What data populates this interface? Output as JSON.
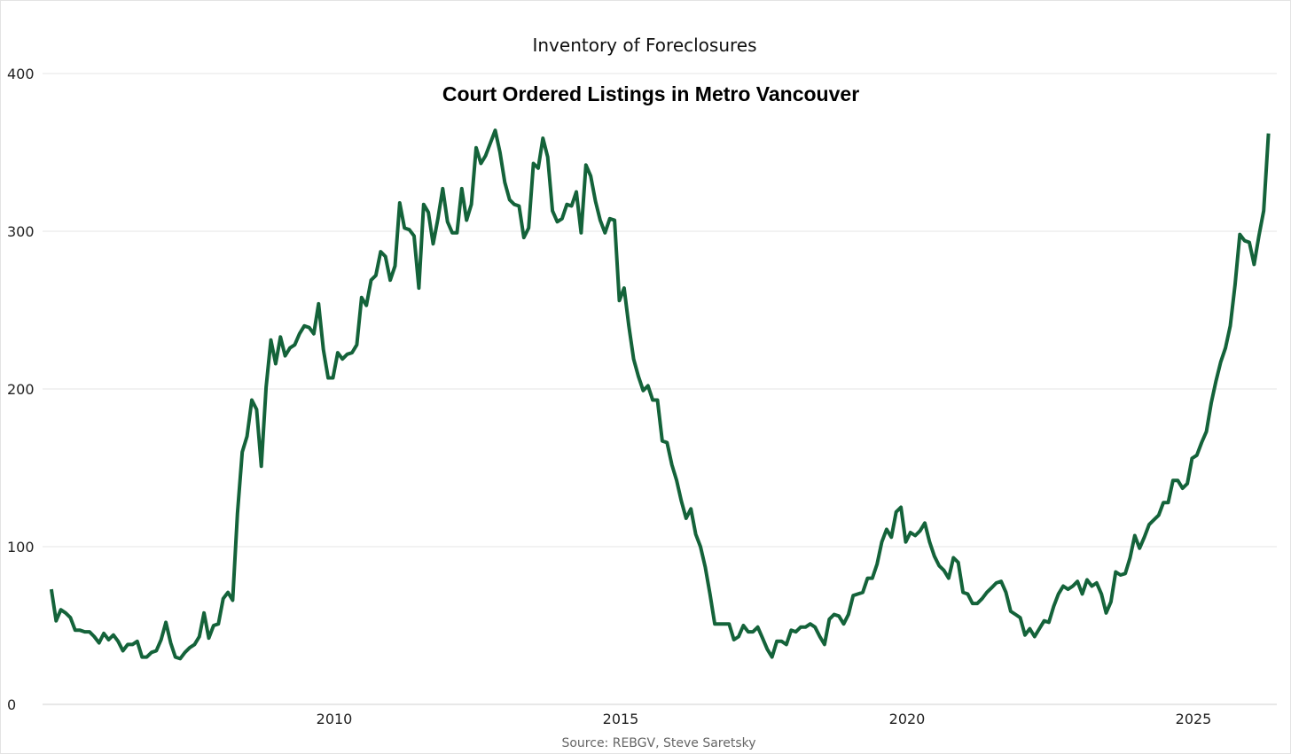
{
  "chart_data": {
    "type": "line",
    "title": "Inventory of Foreclosures",
    "subtitle": "Court Ordered Listings in Metro Vancouver",
    "source": "Source: REBGV, Steve Saretsky",
    "xlabel": "",
    "ylabel": "",
    "ylim": [
      0,
      400
    ],
    "xlim": [
      2005,
      2026.4
    ],
    "yticks": [
      "0",
      "100",
      "200",
      "300",
      "400"
    ],
    "xticks": [
      "2010",
      "2015",
      "2020",
      "2025"
    ],
    "grid": true,
    "line_color": "#14633a",
    "series": [
      {
        "name": "Court Ordered Listings",
        "start_year": 2005.06,
        "step_years": 0.08333,
        "values": [
          73,
          53,
          60,
          58,
          55,
          47,
          47,
          46,
          46,
          43,
          39,
          45,
          41,
          44,
          40,
          34,
          38,
          38,
          40,
          30,
          30,
          33,
          34,
          41,
          52,
          39,
          30,
          29,
          33,
          36,
          38,
          43,
          58,
          42,
          50,
          51,
          67,
          71,
          66,
          121,
          160,
          170,
          193,
          187,
          151,
          201,
          231,
          216,
          233,
          221,
          226,
          228,
          235,
          240,
          239,
          235,
          254,
          225,
          207,
          207,
          223,
          219,
          222,
          223,
          228,
          258,
          253,
          269,
          272,
          287,
          284,
          269,
          278,
          318,
          302,
          301,
          297,
          264,
          317,
          312,
          292,
          308,
          327,
          306,
          299,
          299,
          327,
          307,
          317,
          353,
          343,
          348,
          356,
          364,
          350,
          331,
          320,
          317,
          316,
          296,
          302,
          343,
          340,
          359,
          347,
          313,
          306,
          308,
          317,
          316,
          325,
          299,
          342,
          335,
          319,
          307,
          299,
          308,
          307,
          256,
          264,
          240,
          219,
          208,
          199,
          202,
          193,
          193,
          167,
          166,
          152,
          142,
          129,
          118,
          124,
          108,
          100,
          87,
          70,
          51,
          51,
          51,
          51,
          41,
          43,
          50,
          46,
          46,
          49,
          42,
          35,
          30,
          40,
          40,
          38,
          47,
          46,
          49,
          49,
          51,
          49,
          43,
          38,
          54,
          57,
          56,
          51,
          57,
          69,
          70,
          71,
          80,
          80,
          89,
          103,
          111,
          106,
          122,
          125,
          103,
          109,
          107,
          110,
          115,
          103,
          94,
          88,
          85,
          80,
          93,
          90,
          71,
          70,
          64,
          64,
          67,
          71,
          74,
          77,
          78,
          71,
          59,
          57,
          55,
          44,
          48,
          43,
          48,
          53,
          52,
          62,
          70,
          75,
          73,
          75,
          78,
          70,
          79,
          75,
          77,
          70,
          58,
          65,
          84,
          82,
          83,
          93,
          107,
          99,
          106,
          114,
          117,
          120,
          128,
          128,
          142,
          142,
          137,
          140,
          156,
          158,
          166,
          173,
          191,
          205,
          217,
          226,
          240,
          266,
          298,
          294,
          293,
          279,
          297,
          313,
          362
        ]
      }
    ]
  }
}
